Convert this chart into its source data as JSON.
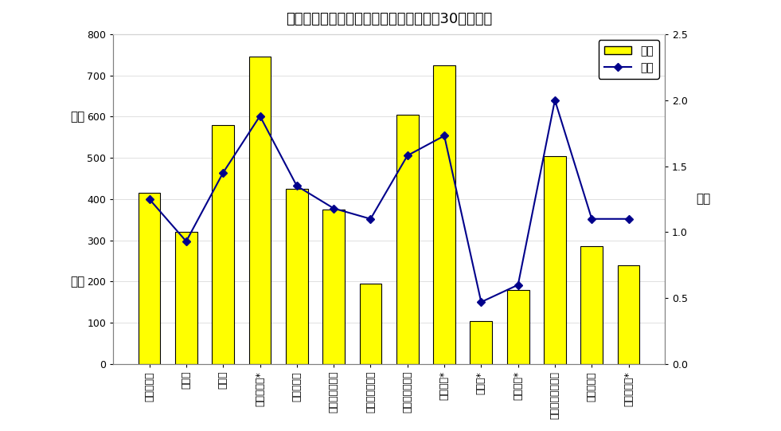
{
  "title": "産業別年末賞与の支給状況（事業所規模30人以上）",
  "categories": [
    "調査産業計",
    "建設業",
    "製造業",
    "電気・ガス*",
    "情報通信業",
    "運輸業，郵便業",
    "卸売業，小売業",
    "金融業，保険業",
    "学術研究*",
    "宿泊業*",
    "生活関連*",
    "教育，学習支援業",
    "医療，福祉",
    "サービス業*"
  ],
  "bar_values": [
    415,
    320,
    580,
    745,
    425,
    375,
    195,
    605,
    725,
    105,
    180,
    505,
    285,
    240
  ],
  "line_values": [
    1.25,
    0.93,
    1.45,
    1.88,
    1.35,
    1.18,
    1.1,
    1.58,
    1.73,
    0.47,
    0.6,
    2.0,
    1.1,
    1.1
  ],
  "bar_color": "#FFFF00",
  "bar_edge_color": "#000000",
  "line_color": "#00008B",
  "marker_color": "#00008B",
  "background_color": "#ffffff",
  "ylabel_left_line1": "金額",
  "ylabel_left_line2": "",
  "ylabel_left_line3": "千円",
  "ylabel_right": "月数",
  "ylim_left": [
    0,
    800
  ],
  "ylim_right": [
    0,
    2.5
  ],
  "yticks_left": [
    0,
    100,
    200,
    300,
    400,
    500,
    600,
    700,
    800
  ],
  "yticks_right": [
    0.0,
    0.5,
    1.0,
    1.5,
    2.0,
    2.5
  ],
  "legend_bar_label": "金額",
  "legend_line_label": "月数",
  "title_fontsize": 13,
  "tick_fontsize": 9
}
